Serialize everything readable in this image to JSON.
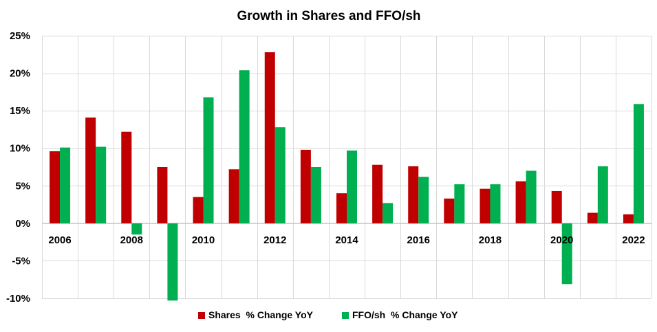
{
  "chart_data": {
    "type": "bar",
    "title": "Growth in Shares and FFO/sh",
    "xlabel": "",
    "ylabel": "",
    "categories": [
      "2006",
      "2007",
      "2008",
      "2009",
      "2010",
      "2011",
      "2012",
      "2013",
      "2014",
      "2015",
      "2016",
      "2017",
      "2018",
      "2019",
      "2020",
      "2021",
      "2022"
    ],
    "x_tick_labels": [
      "2006",
      "",
      "2008",
      "",
      "2010",
      "",
      "2012",
      "",
      "2014",
      "",
      "2016",
      "",
      "2018",
      "",
      "2020",
      "",
      "2022"
    ],
    "ylim": [
      -10,
      25
    ],
    "y_ticks": [
      -10,
      -5,
      0,
      5,
      10,
      15,
      20,
      25
    ],
    "y_tick_labels": [
      "-10%",
      "-5%",
      "0%",
      "5%",
      "10%",
      "15%",
      "20%",
      "25%"
    ],
    "grid": true,
    "legend_position": "bottom",
    "series": [
      {
        "name": "Shares  % Change YoY",
        "color": "#c00000",
        "values": [
          9.6,
          14.1,
          12.2,
          7.5,
          3.5,
          7.2,
          22.8,
          9.8,
          4.0,
          7.8,
          7.6,
          3.3,
          4.6,
          5.6,
          4.3,
          1.4,
          1.2
        ]
      },
      {
        "name": "FFO/sh  % Change YoY",
        "color": "#00b050",
        "values": [
          10.1,
          10.2,
          -1.5,
          -10.3,
          16.8,
          20.4,
          12.8,
          7.5,
          9.7,
          2.7,
          6.2,
          5.2,
          5.2,
          7.0,
          -8.1,
          7.6,
          15.9
        ]
      }
    ]
  }
}
